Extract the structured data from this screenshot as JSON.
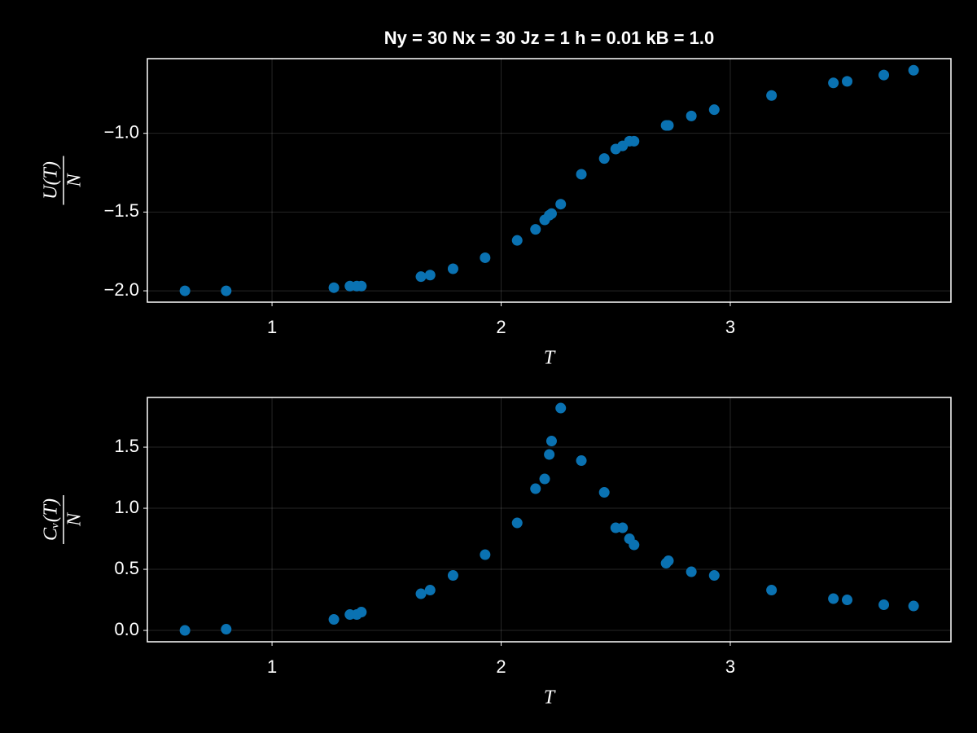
{
  "chart_data": [
    {
      "type": "scatter",
      "title": "Ny = 30 Nx = 30 Jz = 1 h = 0.01 kB = 1.0",
      "xlabel": "T",
      "ylabel": {
        "numerator": "U(T)",
        "denominator": "N"
      },
      "color": "#0a72b2",
      "grid": true,
      "x": [
        0.62,
        0.8,
        1.27,
        1.34,
        1.37,
        1.39,
        1.65,
        1.69,
        1.79,
        1.93,
        2.07,
        2.15,
        2.19,
        2.21,
        2.22,
        2.26,
        2.35,
        2.45,
        2.5,
        2.53,
        2.56,
        2.58,
        2.72,
        2.73,
        2.83,
        2.93,
        3.18,
        3.45,
        3.51,
        3.67,
        3.8
      ],
      "y": [
        -2.0,
        -2.0,
        -1.98,
        -1.97,
        -1.97,
        -1.97,
        -1.91,
        -1.9,
        -1.86,
        -1.79,
        -1.68,
        -1.61,
        -1.55,
        -1.52,
        -1.51,
        -1.45,
        -1.26,
        -1.16,
        -1.1,
        -1.08,
        -1.05,
        -1.05,
        -0.95,
        -0.95,
        -0.89,
        -0.85,
        -0.76,
        -0.68,
        -0.67,
        -0.63,
        -0.6
      ],
      "xlim": [
        0.456,
        3.963
      ],
      "xticks": [
        1,
        2,
        3
      ],
      "ylim": [
        -2.072,
        -0.526
      ],
      "yticks": [
        {
          "value": -2,
          "label": "−2.0"
        },
        {
          "value": -1.5,
          "label": "−1.5"
        },
        {
          "value": -1,
          "label": "−1.0"
        }
      ]
    },
    {
      "type": "scatter",
      "xlabel": "T",
      "ylabel": {
        "numerator": "Cᵥ(T)",
        "denominator": "N"
      },
      "color": "#0a72b2",
      "grid": true,
      "x": [
        0.62,
        0.8,
        1.27,
        1.34,
        1.37,
        1.39,
        1.65,
        1.69,
        1.79,
        1.93,
        2.07,
        2.15,
        2.19,
        2.21,
        2.22,
        2.26,
        2.35,
        2.45,
        2.5,
        2.53,
        2.56,
        2.58,
        2.72,
        2.73,
        2.83,
        2.93,
        3.18,
        3.45,
        3.51,
        3.67,
        3.8
      ],
      "y": [
        0.0,
        0.01,
        0.09,
        0.13,
        0.13,
        0.15,
        0.3,
        0.33,
        0.45,
        0.62,
        0.88,
        1.16,
        1.24,
        1.44,
        1.55,
        1.82,
        1.39,
        1.13,
        0.84,
        0.84,
        0.75,
        0.7,
        0.55,
        0.57,
        0.48,
        0.45,
        0.33,
        0.26,
        0.25,
        0.21,
        0.2
      ],
      "xlim": [
        0.456,
        3.963
      ],
      "xticks": [
        1,
        2,
        3
      ],
      "ylim": [
        -0.093,
        1.907
      ],
      "yticks": [
        {
          "value": 0,
          "label": "0.0"
        },
        0.5,
        {
          "value": 1,
          "label": "1.0"
        },
        1.5
      ]
    }
  ]
}
